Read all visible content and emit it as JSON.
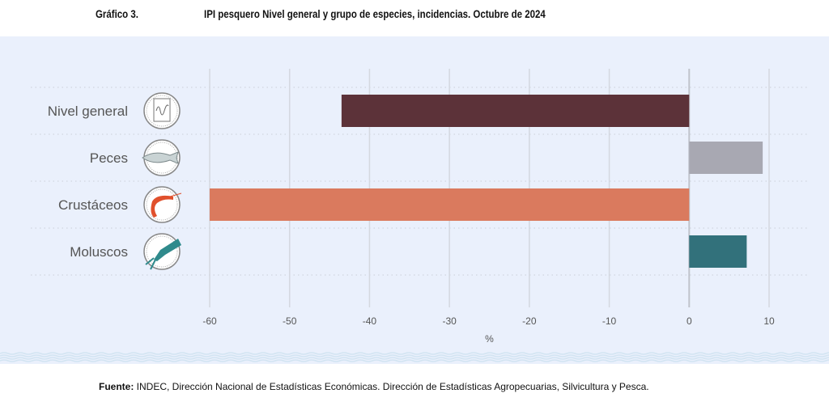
{
  "header": {
    "figure_number": "Gráfico 3.",
    "title": "IPI pesquero Nivel general y grupo de especies, incidencias. Octubre de 2024"
  },
  "chart_data": {
    "type": "bar",
    "orientation": "horizontal",
    "title": "IPI pesquero Nivel general y grupo de especies, incidencias. Octubre de 2024",
    "categories": [
      "Nivel general",
      "Peces",
      "Crustáceos",
      "Moluscos"
    ],
    "icons": [
      "chart-paper-icon",
      "fish-icon",
      "shrimp-icon",
      "squid-icon"
    ],
    "values": [
      -43.5,
      9.2,
      -60.0,
      7.2
    ],
    "colors": [
      "#5C3239",
      "#A8A8B2",
      "#DA7A5E",
      "#32717B"
    ],
    "xlabel": "%",
    "ylabel": "",
    "xlim": [
      -60,
      10
    ],
    "xticks": [
      -60,
      -50,
      -40,
      -30,
      -20,
      -10,
      0,
      10
    ],
    "grid": true
  },
  "footer": {
    "source_label": "Fuente:",
    "source_text": " INDEC, Dirección Nacional de Estadísticas Económicas. Dirección de Estadísticas Agropecuarias, Silvicultura y Pesca."
  }
}
